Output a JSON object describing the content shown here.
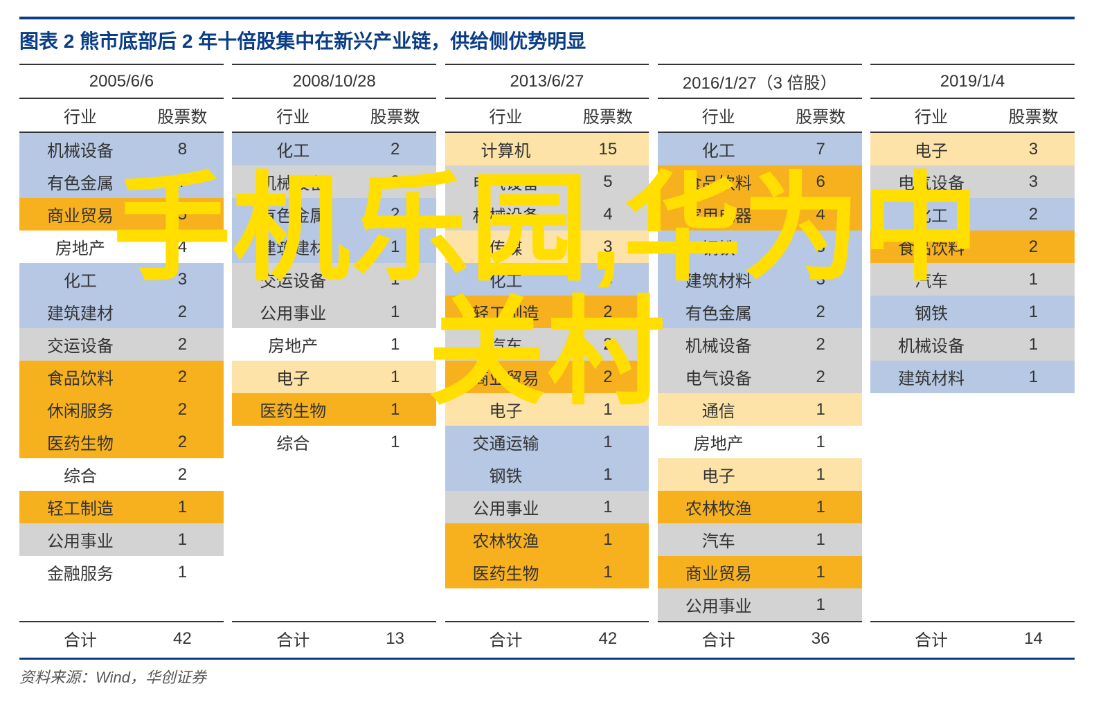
{
  "title": "图表 2   熊市底部后 2 年十倍股集中在新兴产业链，供给侧优势明显",
  "source": "资料来源：Wind，华创证券",
  "watermark": "手机乐园,华为中\n关村",
  "colors": {
    "blue": "#b7c8e4",
    "orange": "#f7b11e",
    "light_orange": "#fde3a7",
    "grey": "#d3d3d3",
    "white": "#ffffff",
    "title_color": "#0a3d86",
    "watermark_color": "#ffde00"
  },
  "subheads": {
    "industry": "行业",
    "count": "股票数",
    "total": "合计"
  },
  "groups": [
    {
      "header": "2005/6/6",
      "total": 42,
      "rows": [
        {
          "industry": "机械设备",
          "count": 8,
          "color": "blue"
        },
        {
          "industry": "有色金属",
          "count": 7,
          "color": "blue"
        },
        {
          "industry": "商业贸易",
          "count": 5,
          "color": "orange"
        },
        {
          "industry": "房地产",
          "count": 4,
          "color": "white"
        },
        {
          "industry": "化工",
          "count": 3,
          "color": "blue"
        },
        {
          "industry": "建筑建材",
          "count": 2,
          "color": "blue"
        },
        {
          "industry": "交运设备",
          "count": 2,
          "color": "grey"
        },
        {
          "industry": "食品饮料",
          "count": 2,
          "color": "orange"
        },
        {
          "industry": "休闲服务",
          "count": 2,
          "color": "orange"
        },
        {
          "industry": "医药生物",
          "count": 2,
          "color": "orange"
        },
        {
          "industry": "综合",
          "count": 2,
          "color": "white"
        },
        {
          "industry": "轻工制造",
          "count": 1,
          "color": "orange"
        },
        {
          "industry": "公用事业",
          "count": 1,
          "color": "grey"
        },
        {
          "industry": "金融服务",
          "count": 1,
          "color": "white"
        },
        null
      ]
    },
    {
      "header": "2008/10/28",
      "total": 13,
      "rows": [
        {
          "industry": "化工",
          "count": 2,
          "color": "blue"
        },
        {
          "industry": "机械设备",
          "count": 2,
          "color": "grey"
        },
        {
          "industry": "有色金属",
          "count": 2,
          "color": "blue"
        },
        {
          "industry": "建筑建材",
          "count": 1,
          "color": "blue"
        },
        {
          "industry": "交运设备",
          "count": 1,
          "color": "grey"
        },
        {
          "industry": "公用事业",
          "count": 1,
          "color": "grey"
        },
        {
          "industry": "房地产",
          "count": 1,
          "color": "white"
        },
        {
          "industry": "电子",
          "count": 1,
          "color": "light_orange"
        },
        {
          "industry": "医药生物",
          "count": 1,
          "color": "orange"
        },
        {
          "industry": "综合",
          "count": 1,
          "color": "white"
        },
        null,
        null,
        null,
        null,
        null
      ]
    },
    {
      "header": "2013/6/27",
      "total": 42,
      "rows": [
        {
          "industry": "计算机",
          "count": 15,
          "color": "light_orange"
        },
        {
          "industry": "电气设备",
          "count": 5,
          "color": "grey"
        },
        {
          "industry": "机械设备",
          "count": 4,
          "color": "grey"
        },
        {
          "industry": "传媒",
          "count": 3,
          "color": "light_orange"
        },
        {
          "industry": "化工",
          "count": 3,
          "color": "blue"
        },
        {
          "industry": "轻工制造",
          "count": 2,
          "color": "orange"
        },
        {
          "industry": "汽车",
          "count": 2,
          "color": "grey"
        },
        {
          "industry": "商业贸易",
          "count": 2,
          "color": "orange"
        },
        {
          "industry": "电子",
          "count": 1,
          "color": "light_orange"
        },
        {
          "industry": "交通运输",
          "count": 1,
          "color": "blue"
        },
        {
          "industry": "钢铁",
          "count": 1,
          "color": "blue"
        },
        {
          "industry": "公用事业",
          "count": 1,
          "color": "grey"
        },
        {
          "industry": "农林牧渔",
          "count": 1,
          "color": "orange"
        },
        {
          "industry": "医药生物",
          "count": 1,
          "color": "orange"
        },
        null
      ]
    },
    {
      "header": "2016/1/27（3 倍股）",
      "total": 36,
      "rows": [
        {
          "industry": "化工",
          "count": 7,
          "color": "blue"
        },
        {
          "industry": "食品饮料",
          "count": 6,
          "color": "orange"
        },
        {
          "industry": "家用电器",
          "count": 4,
          "color": "orange"
        },
        {
          "industry": "钢铁",
          "count": 3,
          "color": "blue"
        },
        {
          "industry": "建筑材料",
          "count": 3,
          "color": "blue"
        },
        {
          "industry": "有色金属",
          "count": 2,
          "color": "blue"
        },
        {
          "industry": "机械设备",
          "count": 2,
          "color": "grey"
        },
        {
          "industry": "电气设备",
          "count": 2,
          "color": "grey"
        },
        {
          "industry": "通信",
          "count": 1,
          "color": "light_orange"
        },
        {
          "industry": "房地产",
          "count": 1,
          "color": "white"
        },
        {
          "industry": "电子",
          "count": 1,
          "color": "light_orange"
        },
        {
          "industry": "农林牧渔",
          "count": 1,
          "color": "orange"
        },
        {
          "industry": "汽车",
          "count": 1,
          "color": "grey"
        },
        {
          "industry": "商业贸易",
          "count": 1,
          "color": "orange"
        },
        {
          "industry": "公用事业",
          "count": 1,
          "color": "grey"
        }
      ]
    },
    {
      "header": "2019/1/4",
      "total": 14,
      "rows": [
        {
          "industry": "电子",
          "count": 3,
          "color": "light_orange"
        },
        {
          "industry": "电气设备",
          "count": 3,
          "color": "grey"
        },
        {
          "industry": "化工",
          "count": 2,
          "color": "blue"
        },
        {
          "industry": "食品饮料",
          "count": 2,
          "color": "orange"
        },
        {
          "industry": "汽车",
          "count": 1,
          "color": "grey"
        },
        {
          "industry": "钢铁",
          "count": 1,
          "color": "blue"
        },
        {
          "industry": "机械设备",
          "count": 1,
          "color": "grey"
        },
        {
          "industry": "建筑材料",
          "count": 1,
          "color": "blue"
        },
        null,
        null,
        null,
        null,
        null,
        null,
        null
      ]
    }
  ]
}
